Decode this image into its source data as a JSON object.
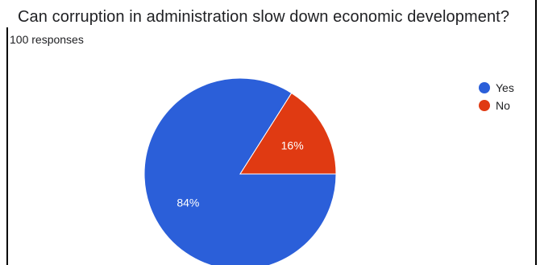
{
  "chart_data": {
    "type": "pie",
    "title": "Can corruption in administration slow down economic development?",
    "subtitle": "100 responses",
    "slices": [
      {
        "label": "Yes",
        "value": 84,
        "display": "84%",
        "color": "#2b5fd9"
      },
      {
        "label": "No",
        "value": 16,
        "display": "16%",
        "color": "#e03a12"
      }
    ],
    "legend_position": "right"
  }
}
